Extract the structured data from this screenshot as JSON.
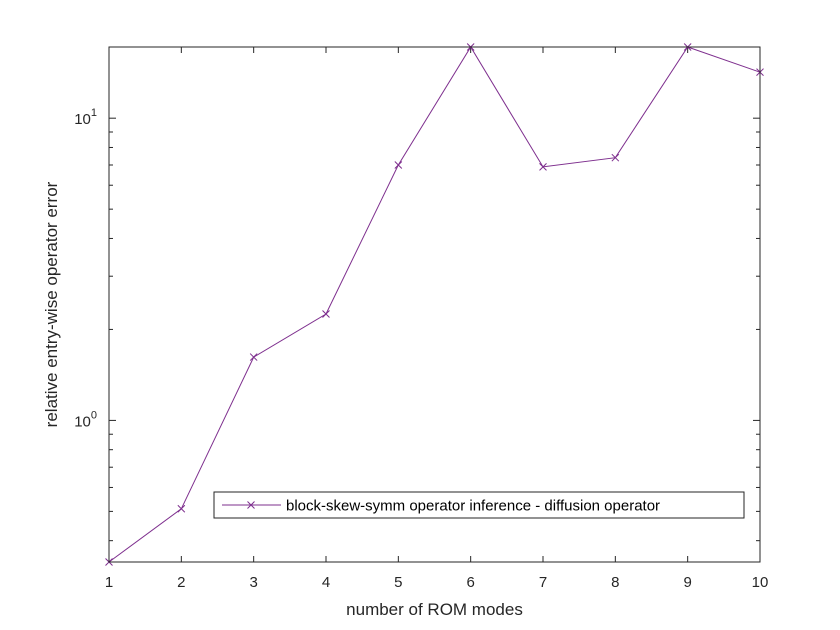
{
  "chart_data": {
    "type": "line",
    "xlabel": "number of ROM modes",
    "ylabel": "relative entry-wise operator error",
    "yscale": "log",
    "xlim": [
      1,
      10
    ],
    "ylim": [
      0.34,
      17.2
    ],
    "x_ticks": [
      1,
      2,
      3,
      4,
      5,
      6,
      7,
      8,
      9,
      10
    ],
    "x_tick_labels": [
      "1",
      "2",
      "3",
      "4",
      "5",
      "6",
      "7",
      "8",
      "9",
      "10"
    ],
    "y_major_ticks": [
      {
        "value": 1,
        "base": "10",
        "exp": "0"
      },
      {
        "value": 10,
        "base": "10",
        "exp": "1"
      }
    ],
    "grid": false,
    "legend_position": "lower-right",
    "series": [
      {
        "name": "block-skew-symm operator inference - diffusion operator",
        "color": "#7E2F8E",
        "marker": "x",
        "x": [
          1,
          2,
          3,
          4,
          5,
          6,
          7,
          8,
          9,
          10
        ],
        "y": [
          0.34,
          0.51,
          1.62,
          2.25,
          7.0,
          17.2,
          6.9,
          7.4,
          17.2,
          14.2
        ]
      }
    ]
  }
}
